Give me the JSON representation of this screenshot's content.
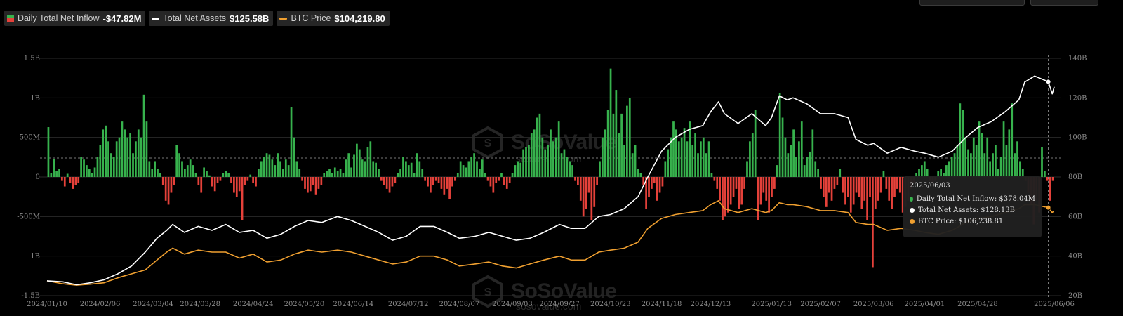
{
  "legend": {
    "inflow": {
      "label": "Daily Total Net Inflow",
      "value": "-$47.82M",
      "color_pos": "#37b24d",
      "color_neg": "#e5413a"
    },
    "assets": {
      "label": "Total Net Assets",
      "value": "$125.58B",
      "color": "#ffffff"
    },
    "btc": {
      "label": "BTC Price",
      "value": "$104,219.80",
      "color": "#f0a030"
    }
  },
  "tooltip": {
    "date": "2025/06/03",
    "inflow": "Daily Total Net Inflow: $378.04M",
    "assets": "Total Net Assets: $128.13B",
    "btc": "BTC Price: $106,238.81"
  },
  "watermark": {
    "brand": "SoSoValue",
    "site": "sosovalue.com"
  },
  "chart_data": {
    "type": "bar+line",
    "x_tick_labels": [
      "2024/01/10",
      "2024/02/06",
      "2024/03/04",
      "2024/03/28",
      "2024/04/24",
      "2024/05/20",
      "2024/06/14",
      "2024/07/12",
      "2024/08/07",
      "2024/09/03",
      "2024/09/27",
      "2024/10/23",
      "2024/11/18",
      "2024/12/13",
      "2025/01/13",
      "2025/02/07",
      "2025/03/06",
      "2025/04/01",
      "2025/04/28",
      "2025/06/06"
    ],
    "y_left": {
      "range": [
        -1.5,
        1.5
      ],
      "ticks": [
        "1.5B",
        "1B",
        "500M",
        "0",
        "-500M",
        "-1B",
        "-1.5B"
      ],
      "unit": "B USD"
    },
    "y_right": {
      "range": [
        20,
        140
      ],
      "ticks": [
        "140B",
        "120B",
        "100B",
        "80B",
        "60B",
        "40B",
        "20B"
      ],
      "unit": "B USD"
    },
    "dashed_reference": {
      "left_value": 0.24,
      "right_value": 89
    },
    "crosshair_date": "2025/06/03",
    "series": [
      {
        "name": "Daily Total Net Inflow",
        "type": "bar",
        "axis": "left",
        "unit": "B USD",
        "values": [
          0.63,
          0.05,
          0.23,
          0.08,
          0.1,
          -0.05,
          -0.12,
          0.04,
          -0.08,
          -0.15,
          -0.1,
          -0.08,
          0.25,
          0.22,
          0.15,
          0.1,
          0.05,
          0.12,
          0.25,
          0.4,
          0.6,
          0.65,
          0.45,
          0.3,
          0.25,
          0.45,
          0.5,
          0.7,
          0.6,
          0.5,
          0.55,
          0.3,
          0.45,
          0.6,
          0.5,
          1.04,
          0.7,
          0.2,
          0.1,
          0.2,
          0.1,
          0.05,
          -0.1,
          -0.3,
          -0.35,
          -0.2,
          -0.1,
          0.4,
          0.3,
          0.2,
          0.1,
          0.15,
          0.22,
          0.15,
          0.05,
          -0.1,
          -0.2,
          0.12,
          0.08,
          0.02,
          -0.12,
          -0.18,
          -0.08,
          -0.05,
          0.05,
          0.08,
          0.05,
          -0.08,
          -0.2,
          -0.25,
          -0.18,
          -0.55,
          -0.1,
          -0.05,
          0.03,
          -0.08,
          -0.12,
          0.1,
          0.2,
          0.25,
          0.3,
          0.28,
          0.22,
          0.15,
          0.3,
          0.2,
          0.1,
          0.22,
          0.15,
          0.88,
          0.5,
          0.2,
          0.1,
          -0.05,
          -0.15,
          -0.2,
          -0.18,
          -0.1,
          -0.22,
          -0.15,
          -0.1,
          0.05,
          0.08,
          0.1,
          0.05,
          0.12,
          0.08,
          0.1,
          0.05,
          0.22,
          0.3,
          0.12,
          0.28,
          0.42,
          0.35,
          0.22,
          0.2,
          0.38,
          0.45,
          0.2,
          0.18,
          0.1,
          -0.05,
          -0.1,
          -0.15,
          -0.2,
          -0.12,
          -0.08,
          0.05,
          0.1,
          0.25,
          0.2,
          0.15,
          0.18,
          0.05,
          0.3,
          0.2,
          0.1,
          -0.05,
          -0.12,
          -0.2,
          -0.1,
          -0.05,
          -0.08,
          -0.15,
          -0.22,
          -0.15,
          -0.28,
          -0.12,
          -0.05,
          0.05,
          0.2,
          0.15,
          0.12,
          0.2,
          0.25,
          0.3,
          0.2,
          0.1,
          0.22,
          0.05,
          -0.05,
          -0.12,
          -0.2,
          -0.08,
          -0.05,
          0.05,
          -0.1,
          -0.15,
          -0.08,
          0.05,
          0.15,
          0.2,
          0.18,
          0.35,
          0.38,
          0.4,
          0.55,
          0.6,
          0.75,
          0.8,
          0.5,
          0.35,
          0.4,
          0.6,
          0.45,
          0.5,
          0.7,
          0.3,
          0.35,
          0.25,
          0.2,
          0.15,
          -0.05,
          -0.1,
          -0.3,
          -0.5,
          -0.4,
          -0.2,
          -0.55,
          -0.38,
          -0.1,
          0.2,
          0.5,
          0.6,
          0.85,
          1.37,
          0.8,
          1.1,
          0.55,
          0.8,
          0.4,
          0.9,
          1.0,
          0.3,
          0.4,
          0.1,
          0.05,
          -0.1,
          -0.4,
          -0.25,
          -0.15,
          -0.08,
          -0.3,
          -0.2,
          -0.12,
          0.2,
          0.35,
          0.5,
          0.7,
          0.6,
          0.45,
          0.5,
          0.62,
          0.45,
          0.7,
          0.4,
          0.55,
          0.3,
          0.45,
          0.5,
          0.3,
          0.45,
          0.05,
          -0.05,
          -0.15,
          -0.3,
          -0.55,
          -0.5,
          -0.45,
          -0.35,
          -0.25,
          -0.15,
          -0.4,
          -0.35,
          -0.15,
          0.2,
          0.45,
          0.55,
          0.85,
          -0.55,
          -0.35,
          -0.2,
          -0.3,
          -0.45,
          -0.25,
          -0.15,
          0.15,
          1.06,
          0.75,
          0.5,
          0.3,
          0.4,
          0.6,
          0.25,
          0.45,
          0.7,
          0.15,
          0.25,
          0.32,
          0.6,
          0.2,
          0.1,
          -0.15,
          -0.25,
          -0.38,
          -0.2,
          -0.3,
          -0.15,
          -0.1,
          0.1,
          -0.2,
          -0.35,
          -0.25,
          -0.45,
          -0.35,
          -0.2,
          -0.25,
          -0.4,
          -0.3,
          -0.55,
          -0.25,
          -1.14,
          -0.4,
          -0.3,
          -0.2,
          0.08,
          -0.15,
          -0.3,
          -0.4,
          -0.25,
          -0.15,
          -0.2,
          -0.45,
          -0.38,
          -0.3,
          -0.15,
          -0.08,
          0.05,
          0.1,
          0.15,
          0.2,
          0.1,
          -0.05,
          -0.08,
          -0.05,
          0.08,
          0.1,
          0.05,
          0.15,
          0.2,
          0.25,
          0.3,
          0.4,
          0.93,
          0.85,
          0.5,
          0.35,
          0.3,
          0.5,
          0.4,
          0.7,
          0.55,
          0.3,
          0.5,
          0.2,
          0.3,
          0.4,
          0.1,
          0.25,
          0.7,
          0.4,
          0.6,
          0.93,
          0.3,
          0.45,
          0.2,
          0.1,
          -0.05,
          -0.2,
          -0.35,
          -0.6,
          -0.3,
          -0.45,
          0.38,
          0.08,
          -0.05,
          -0.3,
          -0.05
        ]
      },
      {
        "name": "Total Net Assets",
        "type": "line",
        "axis": "right",
        "unit": "B USD",
        "points": [
          [
            "2024/01/10",
            27.5
          ],
          [
            "2024/01/18",
            27
          ],
          [
            "2024/01/25",
            25.5
          ],
          [
            "2024/02/01",
            26.5
          ],
          [
            "2024/02/08",
            28
          ],
          [
            "2024/02/15",
            31
          ],
          [
            "2024/02/22",
            35
          ],
          [
            "2024/02/29",
            42
          ],
          [
            "2024/03/06",
            49
          ],
          [
            "2024/03/11",
            53
          ],
          [
            "2024/03/14",
            56
          ],
          [
            "2024/03/20",
            52
          ],
          [
            "2024/03/27",
            55
          ],
          [
            "2024/04/03",
            53
          ],
          [
            "2024/04/10",
            56
          ],
          [
            "2024/04/17",
            52
          ],
          [
            "2024/04/24",
            53
          ],
          [
            "2024/05/01",
            49
          ],
          [
            "2024/05/08",
            51
          ],
          [
            "2024/05/15",
            55
          ],
          [
            "2024/05/22",
            58
          ],
          [
            "2024/05/29",
            57
          ],
          [
            "2024/06/06",
            60
          ],
          [
            "2024/06/13",
            58
          ],
          [
            "2024/06/20",
            55
          ],
          [
            "2024/06/27",
            52
          ],
          [
            "2024/07/04",
            48
          ],
          [
            "2024/07/11",
            50
          ],
          [
            "2024/07/18",
            55
          ],
          [
            "2024/07/25",
            55
          ],
          [
            "2024/08/01",
            52
          ],
          [
            "2024/08/07",
            49
          ],
          [
            "2024/08/15",
            50
          ],
          [
            "2024/08/22",
            52
          ],
          [
            "2024/08/29",
            50
          ],
          [
            "2024/09/05",
            48
          ],
          [
            "2024/09/12",
            49
          ],
          [
            "2024/09/19",
            52
          ],
          [
            "2024/09/27",
            56
          ],
          [
            "2024/10/03",
            54
          ],
          [
            "2024/10/10",
            54
          ],
          [
            "2024/10/17",
            60
          ],
          [
            "2024/10/23",
            61
          ],
          [
            "2024/10/30",
            64
          ],
          [
            "2024/11/06",
            70
          ],
          [
            "2024/11/11",
            80
          ],
          [
            "2024/11/18",
            93
          ],
          [
            "2024/11/25",
            100
          ],
          [
            "2024/12/02",
            104
          ],
          [
            "2024/12/09",
            106
          ],
          [
            "2024/12/13",
            113
          ],
          [
            "2024/12/17",
            118
          ],
          [
            "2024/12/20",
            112
          ],
          [
            "2024/12/27",
            107
          ],
          [
            "2025/01/03",
            112
          ],
          [
            "2025/01/10",
            106
          ],
          [
            "2025/01/13",
            110
          ],
          [
            "2025/01/17",
            121
          ],
          [
            "2025/01/21",
            119
          ],
          [
            "2025/01/24",
            120
          ],
          [
            "2025/01/31",
            117
          ],
          [
            "2025/02/07",
            112
          ],
          [
            "2025/02/14",
            112
          ],
          [
            "2025/02/21",
            110
          ],
          [
            "2025/02/25",
            99
          ],
          [
            "2025/03/03",
            96
          ],
          [
            "2025/03/06",
            97
          ],
          [
            "2025/03/13",
            92
          ],
          [
            "2025/03/20",
            95
          ],
          [
            "2025/03/27",
            93
          ],
          [
            "2025/04/01",
            92
          ],
          [
            "2025/04/08",
            90
          ],
          [
            "2025/04/15",
            93
          ],
          [
            "2025/04/22",
            100
          ],
          [
            "2025/04/28",
            105
          ],
          [
            "2025/05/05",
            108
          ],
          [
            "2025/05/12",
            113
          ],
          [
            "2025/05/19",
            119
          ],
          [
            "2025/05/22",
            128
          ],
          [
            "2025/05/27",
            131
          ],
          [
            "2025/06/03",
            128.13
          ],
          [
            "2025/06/05",
            122
          ],
          [
            "2025/06/06",
            125.58
          ]
        ]
      },
      {
        "name": "BTC Price",
        "type": "line",
        "axis": "right",
        "points": [
          [
            "2024/01/10",
            27.5
          ],
          [
            "2024/01/18",
            26
          ],
          [
            "2024/01/25",
            25.3
          ],
          [
            "2024/02/01",
            25.8
          ],
          [
            "2024/02/08",
            26.5
          ],
          [
            "2024/02/15",
            29
          ],
          [
            "2024/02/22",
            31
          ],
          [
            "2024/02/29",
            33
          ],
          [
            "2024/03/06",
            38
          ],
          [
            "2024/03/11",
            42
          ],
          [
            "2024/03/14",
            44
          ],
          [
            "2024/03/20",
            41
          ],
          [
            "2024/03/27",
            43
          ],
          [
            "2024/04/03",
            42
          ],
          [
            "2024/04/10",
            42
          ],
          [
            "2024/04/17",
            39
          ],
          [
            "2024/04/24",
            41
          ],
          [
            "2024/05/01",
            37
          ],
          [
            "2024/05/08",
            38
          ],
          [
            "2024/05/15",
            41
          ],
          [
            "2024/05/22",
            43
          ],
          [
            "2024/05/29",
            42
          ],
          [
            "2024/06/06",
            43
          ],
          [
            "2024/06/13",
            42
          ],
          [
            "2024/06/20",
            40
          ],
          [
            "2024/06/27",
            38
          ],
          [
            "2024/07/04",
            36
          ],
          [
            "2024/07/11",
            37
          ],
          [
            "2024/07/18",
            40
          ],
          [
            "2024/07/25",
            40
          ],
          [
            "2024/08/01",
            38
          ],
          [
            "2024/08/07",
            35
          ],
          [
            "2024/08/15",
            36
          ],
          [
            "2024/08/22",
            37
          ],
          [
            "2024/08/29",
            35
          ],
          [
            "2024/09/05",
            34
          ],
          [
            "2024/09/12",
            36
          ],
          [
            "2024/09/19",
            38
          ],
          [
            "2024/09/27",
            40
          ],
          [
            "2024/10/03",
            38
          ],
          [
            "2024/10/10",
            38
          ],
          [
            "2024/10/17",
            42
          ],
          [
            "2024/10/23",
            43
          ],
          [
            "2024/10/30",
            44
          ],
          [
            "2024/11/06",
            47
          ],
          [
            "2024/11/11",
            54
          ],
          [
            "2024/11/18",
            59
          ],
          [
            "2024/11/25",
            61
          ],
          [
            "2024/12/02",
            62
          ],
          [
            "2024/12/09",
            63
          ],
          [
            "2024/12/13",
            66
          ],
          [
            "2024/12/17",
            68
          ],
          [
            "2024/12/20",
            64
          ],
          [
            "2024/12/27",
            62
          ],
          [
            "2025/01/03",
            64
          ],
          [
            "2025/01/10",
            62
          ],
          [
            "2025/01/13",
            63
          ],
          [
            "2025/01/17",
            67
          ],
          [
            "2025/01/21",
            66
          ],
          [
            "2025/01/24",
            66
          ],
          [
            "2025/01/31",
            65
          ],
          [
            "2025/02/07",
            63
          ],
          [
            "2025/02/14",
            63
          ],
          [
            "2025/02/21",
            62
          ],
          [
            "2025/02/25",
            57
          ],
          [
            "2025/03/03",
            56
          ],
          [
            "2025/03/06",
            56
          ],
          [
            "2025/03/13",
            53
          ],
          [
            "2025/03/20",
            54
          ],
          [
            "2025/03/27",
            53
          ],
          [
            "2025/04/01",
            52
          ],
          [
            "2025/04/08",
            51
          ],
          [
            "2025/04/15",
            53
          ],
          [
            "2025/04/22",
            57
          ],
          [
            "2025/04/28",
            59
          ],
          [
            "2025/05/05",
            60
          ],
          [
            "2025/05/12",
            62
          ],
          [
            "2025/05/19",
            64
          ],
          [
            "2025/05/22",
            66
          ],
          [
            "2025/05/27",
            66
          ],
          [
            "2025/06/03",
            64.5
          ],
          [
            "2025/06/05",
            62
          ],
          [
            "2025/06/06",
            63
          ]
        ]
      }
    ]
  }
}
